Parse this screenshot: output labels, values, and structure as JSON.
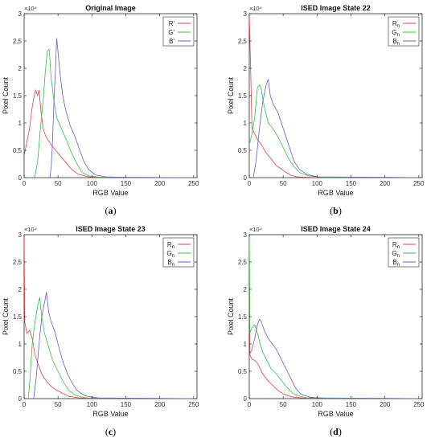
{
  "chart_data": [
    {
      "type": "line",
      "title": "Original Image",
      "caption_open": "(",
      "caption_letter": "a",
      "caption_close": ")",
      "xlabel": "RGB Value",
      "ylabel": "Pixel Count",
      "y_exponent_label": "×10⁴",
      "xlim": [
        0,
        255
      ],
      "ylim": [
        0,
        30000
      ],
      "xticks": [
        "0",
        "50",
        "100",
        "150",
        "200",
        "250"
      ],
      "yticks": [
        "0",
        "0.5",
        "1",
        "1.5",
        "2",
        "2.5",
        "3"
      ],
      "legend_position": "top-right",
      "series": [
        {
          "name": "R'",
          "color": "#e0404a",
          "points": [
            [
              0,
              4000
            ],
            [
              4,
              6500
            ],
            [
              8,
              9000
            ],
            [
              12,
              13000
            ],
            [
              15,
              15000
            ],
            [
              17,
              16000
            ],
            [
              20,
              15000
            ],
            [
              22,
              16000
            ],
            [
              25,
              12000
            ],
            [
              28,
              9000
            ],
            [
              32,
              7500
            ],
            [
              40,
              6000
            ],
            [
              50,
              4500
            ],
            [
              60,
              3000
            ],
            [
              70,
              1500
            ],
            [
              80,
              600
            ],
            [
              95,
              150
            ],
            [
              110,
              50
            ],
            [
              150,
              30
            ],
            [
              255,
              0
            ]
          ]
        },
        {
          "name": "G'",
          "color": "#2ec24a",
          "points": [
            [
              0,
              0
            ],
            [
              14,
              0
            ],
            [
              16,
              300
            ],
            [
              20,
              3000
            ],
            [
              24,
              9000
            ],
            [
              28,
              14000
            ],
            [
              31,
              19000
            ],
            [
              34,
              23000
            ],
            [
              37,
              23500
            ],
            [
              40,
              18000
            ],
            [
              44,
              14000
            ],
            [
              48,
              11000
            ],
            [
              55,
              9000
            ],
            [
              62,
              7000
            ],
            [
              70,
              4500
            ],
            [
              78,
              2500
            ],
            [
              85,
              1000
            ],
            [
              95,
              300
            ],
            [
              110,
              100
            ],
            [
              150,
              30
            ],
            [
              255,
              0
            ]
          ]
        },
        {
          "name": "B'",
          "color": "#6a5acd",
          "points": [
            [
              0,
              0
            ],
            [
              38,
              0
            ],
            [
              40,
              2000
            ],
            [
              42,
              7000
            ],
            [
              44,
              14000
            ],
            [
              46,
              19000
            ],
            [
              48,
              25500
            ],
            [
              50,
              23000
            ],
            [
              53,
              19000
            ],
            [
              57,
              15000
            ],
            [
              62,
              12000
            ],
            [
              68,
              9500
            ],
            [
              75,
              7500
            ],
            [
              82,
              5000
            ],
            [
              88,
              3000
            ],
            [
              95,
              1500
            ],
            [
              105,
              500
            ],
            [
              120,
              150
            ],
            [
              150,
              50
            ],
            [
              255,
              0
            ]
          ]
        }
      ]
    },
    {
      "type": "line",
      "title": "ISED Image State 22",
      "caption_open": "(",
      "caption_letter": "b",
      "caption_close": ")",
      "xlabel": "RGB Value",
      "ylabel": "Pixel Count",
      "y_exponent_label": "×10⁴",
      "xlim": [
        0,
        255
      ],
      "ylim": [
        0,
        30000
      ],
      "xticks": [
        "0",
        "50",
        "100",
        "150",
        "200",
        "250"
      ],
      "yticks": [
        "0",
        "0.5",
        "1",
        "1.5",
        "2",
        "2.5",
        "3"
      ],
      "legend_position": "top-right",
      "series": [
        {
          "name_main": "R",
          "name_sub": "n",
          "color": "#e0404a",
          "points": [
            [
              0,
              30000
            ],
            [
              2,
              20000
            ],
            [
              4,
              9000
            ],
            [
              8,
              8000
            ],
            [
              12,
              7000
            ],
            [
              18,
              6000
            ],
            [
              25,
              4500
            ],
            [
              32,
              3500
            ],
            [
              40,
              2200
            ],
            [
              48,
              1500
            ],
            [
              55,
              900
            ],
            [
              62,
              400
            ],
            [
              70,
              150
            ],
            [
              90,
              50
            ],
            [
              255,
              0
            ]
          ]
        },
        {
          "name_main": "G",
          "name_sub": "n",
          "color": "#2ec24a",
          "points": [
            [
              0,
              6000
            ],
            [
              4,
              8000
            ],
            [
              8,
              11000
            ],
            [
              12,
              16500
            ],
            [
              15,
              17000
            ],
            [
              18,
              16000
            ],
            [
              22,
              13000
            ],
            [
              28,
              10000
            ],
            [
              35,
              9000
            ],
            [
              42,
              7500
            ],
            [
              50,
              5500
            ],
            [
              58,
              3500
            ],
            [
              66,
              2000
            ],
            [
              75,
              900
            ],
            [
              88,
              300
            ],
            [
              110,
              50
            ],
            [
              255,
              0
            ]
          ]
        },
        {
          "name_main": "B",
          "name_sub": "n",
          "color": "#6a5acd",
          "points": [
            [
              0,
              0
            ],
            [
              6,
              0
            ],
            [
              10,
              3000
            ],
            [
              15,
              9000
            ],
            [
              20,
              14000
            ],
            [
              25,
              17000
            ],
            [
              28,
              18000
            ],
            [
              31,
              15000
            ],
            [
              35,
              13500
            ],
            [
              42,
              12000
            ],
            [
              50,
              9000
            ],
            [
              58,
              6000
            ],
            [
              66,
              3000
            ],
            [
              74,
              1500
            ],
            [
              85,
              600
            ],
            [
              100,
              150
            ],
            [
              255,
              0
            ]
          ]
        }
      ]
    },
    {
      "type": "line",
      "title": "ISED Image State 23",
      "caption_open": "(",
      "caption_letter": "c",
      "caption_close": ")",
      "xlabel": "RGB Value",
      "ylabel": "Pixel Count",
      "y_exponent_label": "×10⁴",
      "xlim": [
        0,
        255
      ],
      "ylim": [
        0,
        30000
      ],
      "xticks": [
        "0",
        "50",
        "100",
        "150",
        "200",
        "250"
      ],
      "yticks": [
        "0",
        "0.5",
        "1",
        "1.5",
        "2",
        "2.5",
        "3"
      ],
      "legend_position": "top-right",
      "series": [
        {
          "name_main": "R",
          "name_sub": "n",
          "color": "#e0404a",
          "points": [
            [
              0,
              30000
            ],
            [
              1,
              14000
            ],
            [
              4,
              12000
            ],
            [
              8,
              12500
            ],
            [
              12,
              11000
            ],
            [
              16,
              8000
            ],
            [
              20,
              6500
            ],
            [
              26,
              4500
            ],
            [
              34,
              3000
            ],
            [
              42,
              2000
            ],
            [
              50,
              1400
            ],
            [
              58,
              900
            ],
            [
              66,
              400
            ],
            [
              80,
              150
            ],
            [
              100,
              30
            ],
            [
              255,
              0
            ]
          ]
        },
        {
          "name_main": "G",
          "name_sub": "n",
          "color": "#2ec24a",
          "points": [
            [
              0,
              0
            ],
            [
              6,
              0
            ],
            [
              8,
              2500
            ],
            [
              12,
              10000
            ],
            [
              16,
              14000
            ],
            [
              20,
              17000
            ],
            [
              23,
              18500
            ],
            [
              26,
              15000
            ],
            [
              30,
              12000
            ],
            [
              36,
              9500
            ],
            [
              42,
              7000
            ],
            [
              50,
              5000
            ],
            [
              58,
              3000
            ],
            [
              66,
              1500
            ],
            [
              76,
              600
            ],
            [
              90,
              150
            ],
            [
              255,
              0
            ]
          ]
        },
        {
          "name_main": "B",
          "name_sub": "n",
          "color": "#6a5acd",
          "points": [
            [
              0,
              0
            ],
            [
              14,
              0
            ],
            [
              18,
              4000
            ],
            [
              22,
              10000
            ],
            [
              26,
              15000
            ],
            [
              30,
              17500
            ],
            [
              33,
              19500
            ],
            [
              36,
              16000
            ],
            [
              40,
              14000
            ],
            [
              46,
              12000
            ],
            [
              52,
              9000
            ],
            [
              58,
              6500
            ],
            [
              64,
              4500
            ],
            [
              70,
              3000
            ],
            [
              78,
              1500
            ],
            [
              90,
              500
            ],
            [
              110,
              100
            ],
            [
              255,
              0
            ]
          ]
        }
      ]
    },
    {
      "type": "line",
      "title": "ISED Image State 24",
      "caption_open": "(",
      "caption_letter": "d",
      "caption_close": ")",
      "xlabel": "RGB Value",
      "ylabel": "Pixel Count",
      "y_exponent_label": "×10⁴",
      "xlim": [
        0,
        255
      ],
      "ylim": [
        0,
        30000
      ],
      "xticks": [
        "0",
        "50",
        "100",
        "150",
        "200",
        "250"
      ],
      "yticks": [
        "0",
        "0.5",
        "1",
        "1.5",
        "2",
        "2.5",
        "3"
      ],
      "legend_position": "top-right",
      "series": [
        {
          "name_main": "R",
          "name_sub": "n",
          "color": "#e0404a",
          "points": [
            [
              0,
              30000
            ],
            [
              1,
              8000
            ],
            [
              4,
              7200
            ],
            [
              8,
              7000
            ],
            [
              12,
              6500
            ],
            [
              16,
              5500
            ],
            [
              20,
              4500
            ],
            [
              26,
              3500
            ],
            [
              34,
              2500
            ],
            [
              42,
              1500
            ],
            [
              50,
              900
            ],
            [
              58,
              500
            ],
            [
              66,
              250
            ],
            [
              80,
              100
            ],
            [
              255,
              0
            ]
          ]
        },
        {
          "name_main": "G",
          "name_sub": "n",
          "color": "#2ec24a",
          "points": [
            [
              0,
              30000
            ],
            [
              1,
              12000
            ],
            [
              4,
              13000
            ],
            [
              8,
              13500
            ],
            [
              12,
              12000
            ],
            [
              16,
              10000
            ],
            [
              20,
              8500
            ],
            [
              26,
              7000
            ],
            [
              32,
              5500
            ],
            [
              40,
              4500
            ],
            [
              48,
              3200
            ],
            [
              56,
              2000
            ],
            [
              64,
              1000
            ],
            [
              72,
              500
            ],
            [
              85,
              150
            ],
            [
              255,
              0
            ]
          ]
        },
        {
          "name_main": "B",
          "name_sub": "n",
          "color": "#6a5acd",
          "points": [
            [
              0,
              8000
            ],
            [
              4,
              9000
            ],
            [
              8,
              11000
            ],
            [
              12,
              13500
            ],
            [
              15,
              14500
            ],
            [
              18,
              14000
            ],
            [
              22,
              12500
            ],
            [
              28,
              11000
            ],
            [
              34,
              10000
            ],
            [
              40,
              9000
            ],
            [
              48,
              7000
            ],
            [
              56,
              5000
            ],
            [
              62,
              3500
            ],
            [
              68,
              2000
            ],
            [
              76,
              800
            ],
            [
              90,
              250
            ],
            [
              110,
              50
            ],
            [
              255,
              0
            ]
          ]
        }
      ]
    }
  ]
}
